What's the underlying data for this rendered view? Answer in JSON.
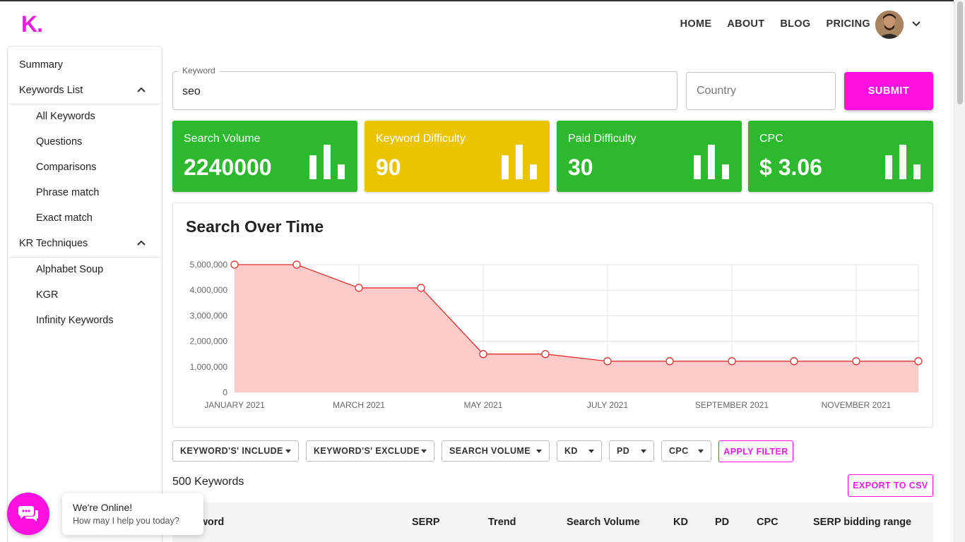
{
  "header": {
    "logo": "K.",
    "nav": [
      "HOME",
      "ABOUT",
      "BLOG",
      "PRICING"
    ]
  },
  "sidebar": {
    "items": [
      {
        "label": "Summary",
        "level": 1
      },
      {
        "label": "Keywords List",
        "level": 1,
        "expanded": true
      },
      {
        "label": "All Keywords",
        "level": 2
      },
      {
        "label": "Questions",
        "level": 2
      },
      {
        "label": "Comparisons",
        "level": 2
      },
      {
        "label": "Phrase match",
        "level": 2
      },
      {
        "label": "Exact match",
        "level": 2
      },
      {
        "label": "KR Techniques",
        "level": 1,
        "expanded": true
      },
      {
        "label": "Alphabet Soup",
        "level": 2
      },
      {
        "label": "KGR",
        "level": 2
      },
      {
        "label": "Infinity Keywords",
        "level": 2
      }
    ]
  },
  "search": {
    "keyword_label": "Keyword",
    "keyword_value": "seo",
    "country_placeholder": "Country",
    "submit_label": "SUBMIT"
  },
  "stats": [
    {
      "title": "Search Volume",
      "value": "2240000",
      "color": "#2db92d"
    },
    {
      "title": "Keyword Difficulty",
      "value": "90",
      "color": "#ebc400"
    },
    {
      "title": "Paid Difficulty",
      "value": "30",
      "color": "#2db92d"
    },
    {
      "title": "CPC",
      "value": "$ 3.06",
      "color": "#2db92d"
    }
  ],
  "chart": {
    "title": "Search Over Time"
  },
  "chart_data": {
    "type": "area",
    "x": [
      "January 2021",
      "February 2021",
      "March 2021",
      "April 2021",
      "May 2021",
      "June 2021",
      "July 2021",
      "August 2021",
      "September 2021",
      "October 2021",
      "November 2021",
      "December 2021"
    ],
    "x_tick_labels": [
      "JANUARY 2021",
      "MARCH 2021",
      "MAY 2021",
      "JULY 2021",
      "SEPTEMBER 2021",
      "NOVEMBER 2021"
    ],
    "values": [
      5000000,
      5000000,
      4090000,
      4090000,
      1500000,
      1500000,
      1220000,
      1220000,
      1220000,
      1220000,
      1220000,
      1220000
    ],
    "ylim": [
      0,
      5000000
    ],
    "y_tick_labels": [
      "0",
      "1,000,000",
      "2,000,000",
      "3,000,000",
      "4,000,000",
      "5,000,000"
    ],
    "grid": true,
    "line_color": "#e03131",
    "fill_color": "#ffcaca"
  },
  "filters": {
    "buttons": [
      "KEYWORD'S' INCLUDE",
      "KEYWORD'S' EXCLUDE",
      "SEARCH VOLUME",
      "KD",
      "PD",
      "CPC"
    ],
    "apply_label": "APPLY FILTER"
  },
  "results": {
    "count_label": "500 Keywords",
    "export_label": "EXPORT TO CSV",
    "columns": [
      "Keyword",
      "SERP",
      "Trend",
      "Search Volume",
      "KD",
      "PD",
      "CPC",
      "SERP bidding range"
    ]
  },
  "chat": {
    "title": "We're Online!",
    "subtitle": "How may I help you today?"
  }
}
